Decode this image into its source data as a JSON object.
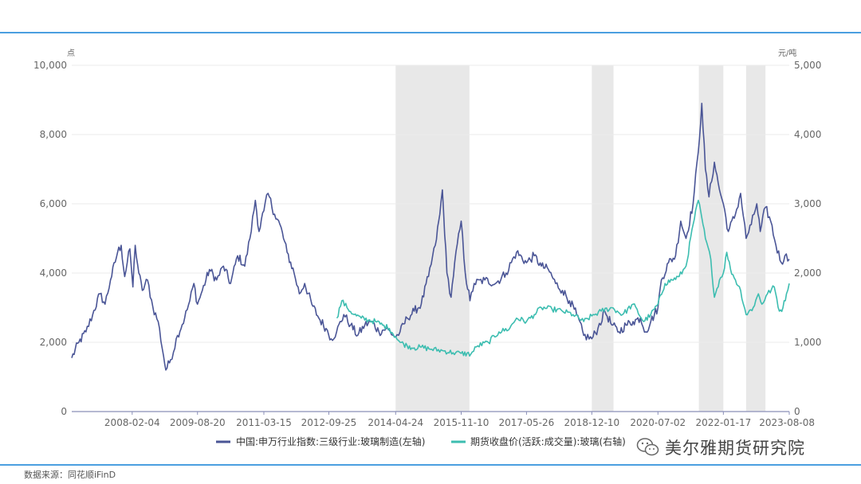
{
  "chart_data": {
    "type": "line",
    "shaded_periods": [
      [
        "2014-04-24",
        "2016-01-20"
      ],
      [
        "2018-12-10",
        "2019-06-15"
      ],
      [
        "2021-06-20",
        "2022-01-17"
      ],
      [
        "2022-08-01",
        "2023-01-15"
      ]
    ],
    "y_left": {
      "unit": "点",
      "ticks": [
        "0",
        "2,000",
        "4,000",
        "6,000",
        "8,000",
        "10,000"
      ],
      "range": [
        0,
        10000
      ]
    },
    "y_right": {
      "unit": "元/吨",
      "ticks": [
        "0",
        "1,000",
        "2,000",
        "3,000",
        "4,000",
        "5,000"
      ],
      "range": [
        0,
        5000
      ]
    },
    "x_ticks": [
      "2008-02-04",
      "2009-08-20",
      "2011-03-15",
      "2012-09-25",
      "2014-04-24",
      "2015-11-10",
      "2017-05-26",
      "2018-12-10",
      "2020-07-02",
      "2022-01-17",
      "2023-08-08"
    ],
    "series": [
      {
        "name": "中国:申万行业指数:三级行业:玻璃制造(左轴)",
        "axis": "left",
        "color": "#4a5596",
        "points": [
          [
            "2006-09-01",
            1550
          ],
          [
            "2006-11-01",
            2000
          ],
          [
            "2007-01-01",
            2300
          ],
          [
            "2007-03-01",
            2800
          ],
          [
            "2007-05-01",
            3400
          ],
          [
            "2007-06-15",
            3100
          ],
          [
            "2007-08-01",
            3800
          ],
          [
            "2007-10-01",
            4600
          ],
          [
            "2007-11-01",
            4800
          ],
          [
            "2007-12-01",
            3900
          ],
          [
            "2008-01-15",
            4700
          ],
          [
            "2008-02-10",
            3600
          ],
          [
            "2008-03-01",
            4800
          ],
          [
            "2008-04-01",
            4000
          ],
          [
            "2008-05-01",
            3500
          ],
          [
            "2008-06-15",
            3800
          ],
          [
            "2008-08-01",
            3000
          ],
          [
            "2008-09-15",
            2600
          ],
          [
            "2008-11-01",
            1600
          ],
          [
            "2008-11-20",
            1200
          ],
          [
            "2009-01-01",
            1500
          ],
          [
            "2009-03-01",
            2200
          ],
          [
            "2009-05-01",
            2700
          ],
          [
            "2009-06-15",
            3200
          ],
          [
            "2009-07-20",
            3700
          ],
          [
            "2009-08-20",
            3100
          ],
          [
            "2009-10-01",
            3500
          ],
          [
            "2009-12-01",
            4100
          ],
          [
            "2010-02-01",
            3800
          ],
          [
            "2010-04-01",
            4200
          ],
          [
            "2010-06-01",
            3700
          ],
          [
            "2010-08-01",
            4500
          ],
          [
            "2010-10-01",
            4200
          ],
          [
            "2010-11-15",
            5000
          ],
          [
            "2011-01-01",
            6100
          ],
          [
            "2011-02-01",
            5200
          ],
          [
            "2011-03-15",
            5800
          ],
          [
            "2011-04-20",
            6300
          ],
          [
            "2011-06-15",
            5700
          ],
          [
            "2011-08-01",
            5400
          ],
          [
            "2011-10-01",
            4600
          ],
          [
            "2011-12-01",
            4000
          ],
          [
            "2012-01-15",
            3400
          ],
          [
            "2012-03-01",
            3700
          ],
          [
            "2012-05-01",
            3100
          ],
          [
            "2012-07-01",
            2700
          ],
          [
            "2012-09-01",
            2400
          ],
          [
            "2012-10-15",
            2100
          ],
          [
            "2012-12-01",
            2300
          ],
          [
            "2013-02-01",
            2800
          ],
          [
            "2013-04-01",
            2500
          ],
          [
            "2013-06-01",
            2200
          ],
          [
            "2013-08-01",
            2500
          ],
          [
            "2013-10-01",
            2600
          ],
          [
            "2013-12-01",
            2300
          ],
          [
            "2014-02-01",
            2400
          ],
          [
            "2014-04-24",
            2150
          ],
          [
            "2014-06-01",
            2300
          ],
          [
            "2014-08-01",
            2700
          ],
          [
            "2014-10-01",
            2900
          ],
          [
            "2014-12-01",
            3100
          ],
          [
            "2015-02-01",
            3900
          ],
          [
            "2015-04-01",
            4800
          ],
          [
            "2015-05-10",
            5700
          ],
          [
            "2015-06-01",
            6400
          ],
          [
            "2015-07-10",
            4000
          ],
          [
            "2015-08-15",
            3300
          ],
          [
            "2015-09-15",
            4300
          ],
          [
            "2015-11-10",
            5500
          ],
          [
            "2015-12-15",
            4000
          ],
          [
            "2016-01-25",
            3200
          ],
          [
            "2016-03-01",
            3700
          ],
          [
            "2016-06-01",
            3800
          ],
          [
            "2016-09-01",
            3700
          ],
          [
            "2016-12-01",
            4000
          ],
          [
            "2017-03-01",
            4600
          ],
          [
            "2017-05-26",
            4300
          ],
          [
            "2017-08-01",
            4500
          ],
          [
            "2017-10-01",
            4200
          ],
          [
            "2017-12-01",
            4100
          ],
          [
            "2018-02-01",
            3700
          ],
          [
            "2018-04-01",
            3500
          ],
          [
            "2018-06-01",
            3200
          ],
          [
            "2018-08-01",
            2800
          ],
          [
            "2018-10-01",
            2200
          ],
          [
            "2018-12-10",
            2100
          ],
          [
            "2019-02-01",
            2400
          ],
          [
            "2019-04-01",
            2900
          ],
          [
            "2019-06-01",
            2500
          ],
          [
            "2019-08-01",
            2300
          ],
          [
            "2019-10-01",
            2500
          ],
          [
            "2019-12-01",
            2600
          ],
          [
            "2020-02-01",
            2700
          ],
          [
            "2020-03-20",
            2300
          ],
          [
            "2020-05-01",
            2600
          ],
          [
            "2020-07-02",
            3000
          ],
          [
            "2020-08-01",
            3800
          ],
          [
            "2020-10-01",
            4300
          ],
          [
            "2020-12-01",
            4500
          ],
          [
            "2021-01-15",
            5500
          ],
          [
            "2021-03-01",
            5000
          ],
          [
            "2021-05-01",
            6000
          ],
          [
            "2021-06-15",
            7500
          ],
          [
            "2021-07-15",
            8900
          ],
          [
            "2021-08-15",
            7000
          ],
          [
            "2021-09-15",
            6200
          ],
          [
            "2021-11-01",
            7200
          ],
          [
            "2021-12-15",
            6400
          ],
          [
            "2022-01-17",
            6000
          ],
          [
            "2022-03-01",
            5200
          ],
          [
            "2022-05-01",
            5700
          ],
          [
            "2022-06-15",
            6300
          ],
          [
            "2022-08-01",
            5000
          ],
          [
            "2022-09-15",
            5400
          ],
          [
            "2022-11-01",
            6000
          ],
          [
            "2022-12-01",
            5200
          ],
          [
            "2023-01-15",
            5900
          ],
          [
            "2023-03-01",
            5500
          ],
          [
            "2023-04-15",
            4800
          ],
          [
            "2023-06-01",
            4300
          ],
          [
            "2023-07-01",
            4500
          ],
          [
            "2023-08-08",
            4400
          ]
        ]
      },
      {
        "name": "期货收盘价(活跃:成交量):玻璃(右轴)",
        "axis": "right",
        "color": "#3cbdb0",
        "points": [
          [
            "2012-12-03",
            1350
          ],
          [
            "2013-01-15",
            1600
          ],
          [
            "2013-03-01",
            1500
          ],
          [
            "2013-05-01",
            1400
          ],
          [
            "2013-07-01",
            1350
          ],
          [
            "2013-09-01",
            1320
          ],
          [
            "2013-11-01",
            1300
          ],
          [
            "2014-01-01",
            1250
          ],
          [
            "2014-03-01",
            1200
          ],
          [
            "2014-04-24",
            1080
          ],
          [
            "2014-06-01",
            1000
          ],
          [
            "2014-08-01",
            950
          ],
          [
            "2014-10-01",
            920
          ],
          [
            "2014-12-01",
            930
          ],
          [
            "2015-03-01",
            900
          ],
          [
            "2015-06-01",
            880
          ],
          [
            "2015-09-01",
            850
          ],
          [
            "2015-11-10",
            840
          ],
          [
            "2016-02-01",
            830
          ],
          [
            "2016-04-01",
            950
          ],
          [
            "2016-07-01",
            1000
          ],
          [
            "2016-10-01",
            1150
          ],
          [
            "2017-01-01",
            1200
          ],
          [
            "2017-03-01",
            1350
          ],
          [
            "2017-05-26",
            1300
          ],
          [
            "2017-08-01",
            1400
          ],
          [
            "2017-10-01",
            1500
          ],
          [
            "2018-01-01",
            1480
          ],
          [
            "2018-04-01",
            1450
          ],
          [
            "2018-07-01",
            1400
          ],
          [
            "2018-10-01",
            1300
          ],
          [
            "2018-12-10",
            1380
          ],
          [
            "2019-03-01",
            1450
          ],
          [
            "2019-06-01",
            1500
          ],
          [
            "2019-09-01",
            1400
          ],
          [
            "2019-12-01",
            1550
          ],
          [
            "2020-03-01",
            1300
          ],
          [
            "2020-05-01",
            1400
          ],
          [
            "2020-07-02",
            1550
          ],
          [
            "2020-09-01",
            1850
          ],
          [
            "2020-11-01",
            1900
          ],
          [
            "2021-01-01",
            1950
          ],
          [
            "2021-03-01",
            2100
          ],
          [
            "2021-05-01",
            2700
          ],
          [
            "2021-06-15",
            3050
          ],
          [
            "2021-07-15",
            2800
          ],
          [
            "2021-08-15",
            2500
          ],
          [
            "2021-10-01",
            2200
          ],
          [
            "2021-11-01",
            1650
          ],
          [
            "2021-12-15",
            1900
          ],
          [
            "2022-01-17",
            2000
          ],
          [
            "2022-02-15",
            2300
          ],
          [
            "2022-03-20",
            2050
          ],
          [
            "2022-05-01",
            1900
          ],
          [
            "2022-06-15",
            1750
          ],
          [
            "2022-08-01",
            1400
          ],
          [
            "2022-10-01",
            1500
          ],
          [
            "2022-11-15",
            1700
          ],
          [
            "2022-12-15",
            1550
          ],
          [
            "2023-02-01",
            1700
          ],
          [
            "2023-04-01",
            1800
          ],
          [
            "2023-05-15",
            1450
          ],
          [
            "2023-06-15",
            1500
          ],
          [
            "2023-07-15",
            1700
          ],
          [
            "2023-08-08",
            1850
          ]
        ]
      }
    ]
  },
  "source_text": "数据来源：同花顺iFinD",
  "watermark_text": "美尔雅期货研究院"
}
